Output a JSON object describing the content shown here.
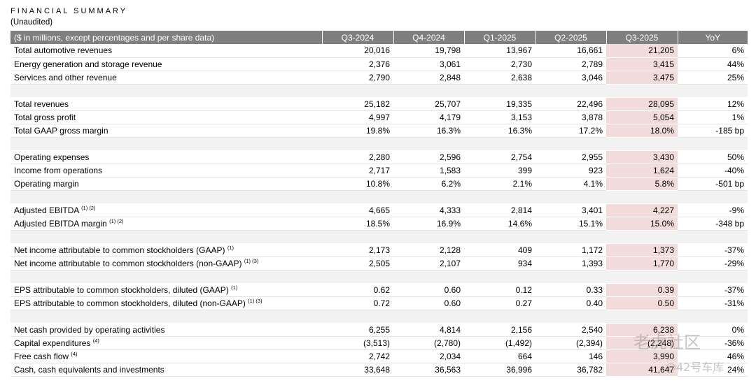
{
  "header": {
    "title": "FINANCIAL SUMMARY",
    "subtitle": "(Unaudited)"
  },
  "table": {
    "columns": [
      "($ in millions, except percentages and per share data)",
      "Q3-2024",
      "Q4-2024",
      "Q1-2025",
      "Q2-2025",
      "Q3-2025",
      "YoY"
    ],
    "sections": [
      {
        "rows": [
          {
            "label": "Total automotive revenues",
            "values": [
              "20,016",
              "19,798",
              "13,967",
              "16,661",
              "21,205",
              "6%"
            ]
          },
          {
            "label": "Energy generation and storage revenue",
            "values": [
              "2,376",
              "3,061",
              "2,730",
              "2,789",
              "3,415",
              "44%"
            ]
          },
          {
            "label": "Services and other revenue",
            "values": [
              "2,790",
              "2,848",
              "2,638",
              "3,046",
              "3,475",
              "25%"
            ]
          }
        ]
      },
      {
        "rows": [
          {
            "label": "Total revenues",
            "values": [
              "25,182",
              "25,707",
              "19,335",
              "22,496",
              "28,095",
              "12%"
            ]
          },
          {
            "label": "Total gross profit",
            "values": [
              "4,997",
              "4,179",
              "3,153",
              "3,878",
              "5,054",
              "1%"
            ]
          },
          {
            "label": "Total GAAP gross margin",
            "values": [
              "19.8%",
              "16.3%",
              "16.3%",
              "17.2%",
              "18.0%",
              "-185 bp"
            ]
          }
        ]
      },
      {
        "rows": [
          {
            "label": "Operating expenses",
            "values": [
              "2,280",
              "2,596",
              "2,754",
              "2,955",
              "3,430",
              "50%"
            ]
          },
          {
            "label": "Income from operations",
            "values": [
              "2,717",
              "1,583",
              "399",
              "923",
              "1,624",
              "-40%"
            ]
          },
          {
            "label": "Operating margin",
            "values": [
              "10.8%",
              "6.2%",
              "2.1%",
              "4.1%",
              "5.8%",
              "-501 bp"
            ]
          }
        ]
      },
      {
        "rows": [
          {
            "label": "Adjusted EBITDA",
            "note": "(1) (2)",
            "values": [
              "4,665",
              "4,333",
              "2,814",
              "3,401",
              "4,227",
              "-9%"
            ]
          },
          {
            "label": "Adjusted EBITDA margin",
            "note": "(1) (2)",
            "values": [
              "18.5%",
              "16.9%",
              "14.6%",
              "15.1%",
              "15.0%",
              "-348 bp"
            ]
          }
        ]
      },
      {
        "rows": [
          {
            "label": "Net income attributable to common stockholders (GAAP)",
            "note": "(1)",
            "values": [
              "2,173",
              "2,128",
              "409",
              "1,172",
              "1,373",
              "-37%"
            ]
          },
          {
            "label": "Net income attributable to common stockholders (non-GAAP)",
            "note": "(1) (3)",
            "values": [
              "2,505",
              "2,107",
              "934",
              "1,393",
              "1,770",
              "-29%"
            ]
          }
        ]
      },
      {
        "rows": [
          {
            "label": "EPS attributable to common stockholders, diluted (GAAP)",
            "note": "(1)",
            "values": [
              "0.62",
              "0.60",
              "0.12",
              "0.33",
              "0.39",
              "-37%"
            ]
          },
          {
            "label": "EPS attributable to common stockholders, diluted (non-GAAP)",
            "note": "(1) (3)",
            "values": [
              "0.72",
              "0.60",
              "0.27",
              "0.40",
              "0.50",
              "-31%"
            ]
          }
        ]
      },
      {
        "rows": [
          {
            "label": "Net cash provided by operating activities",
            "values": [
              "6,255",
              "4,814",
              "2,156",
              "2,540",
              "6,238",
              "0%"
            ]
          },
          {
            "label": "Capital expenditures",
            "note": "(4)",
            "values": [
              "(3,513)",
              "(2,780)",
              "(1,492)",
              "(2,394)",
              "(2,248)",
              "-36%"
            ]
          },
          {
            "label": "Free cash flow",
            "note": "(4)",
            "values": [
              "2,742",
              "2,034",
              "664",
              "146",
              "3,990",
              "46%"
            ]
          },
          {
            "label": "Cash, cash equivalents and investments",
            "values": [
              "33,648",
              "36,563",
              "36,996",
              "36,782",
              "41,647",
              "24%"
            ]
          }
        ]
      }
    ]
  },
  "watermark": [
    "老虎社区",
    "@42号车库"
  ]
}
